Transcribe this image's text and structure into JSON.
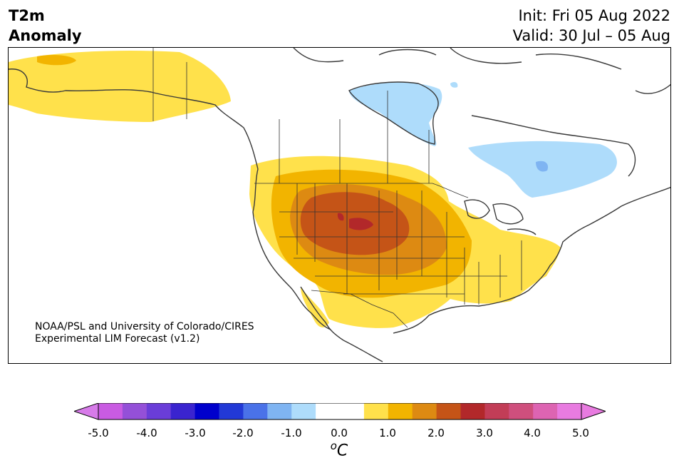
{
  "title": {
    "line1": "T2m",
    "line2": "Anomaly"
  },
  "header": {
    "init": "Init: Fri 05 Aug 2022",
    "valid": "Valid: 30 Jul – 05 Aug"
  },
  "credit": {
    "line1": "NOAA/PSL and University of Colorado/CIRES",
    "line2": "Experimental LIM Forecast (v1.2)"
  },
  "colorbar": {
    "ticks": [
      "-5.0",
      "-4.0",
      "-3.0",
      "-2.0",
      "-1.0",
      "0.0",
      "1.0",
      "2.0",
      "3.0",
      "4.0",
      "5.0"
    ],
    "unit_superscript": "o",
    "unit": "C",
    "colors": [
      "#c95be2",
      "#9450d8",
      "#6a3dd8",
      "#3a24cf",
      "#0000cc",
      "#2239d6",
      "#4a72e8",
      "#7fb4f2",
      "#aedcfb",
      "#ffffff",
      "#ffffff",
      "#ffe14b",
      "#f2b400",
      "#dd8a12",
      "#c55417",
      "#b2282a",
      "#c23d57",
      "#cf4f7d",
      "#dd64b2",
      "#e87be0"
    ],
    "extend_low": "#d77be9",
    "extend_high": "#e87be0"
  },
  "anomaly_colors": {
    "cold1": "#aedcfb",
    "cold2": "#7fb4f2",
    "warm1": "#ffe14b",
    "warm2": "#f2b400",
    "warm3": "#dd8a12",
    "warm4": "#c55417",
    "warm5": "#b2282a"
  }
}
